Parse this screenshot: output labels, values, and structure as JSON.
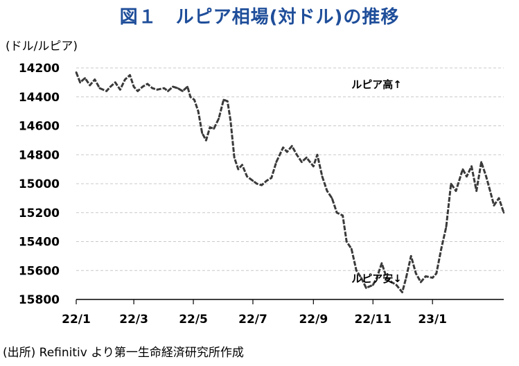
{
  "title": "図１　ルピア相場(対ドル)の推移",
  "unit_label": "(ドル/ルピア)",
  "source_note": "(出所) Refinitiv より第一生命経済研究所作成",
  "colors": {
    "title": "#1f4e9a",
    "series": "#3a3a3a",
    "grid": "#c8c8c8"
  },
  "chart_data": {
    "type": "line",
    "title": "図１　ルピア相場(対ドル)の推移",
    "ylabel": "(ドル/ルピア)",
    "xlabel": "",
    "y_inverted": true,
    "ylim": [
      14200,
      15800
    ],
    "yticks": [
      14200,
      14400,
      14600,
      14800,
      15000,
      15200,
      15400,
      15600,
      15800
    ],
    "ytick_labels": [
      "14200",
      "14400",
      "14600",
      "14800",
      "15000",
      "15200",
      "15400",
      "15600",
      "15800"
    ],
    "xlim": [
      "2022-01-01",
      "2023-03-15"
    ],
    "xticks": [
      "2022-01-01",
      "2022-03-01",
      "2022-05-01",
      "2022-07-01",
      "2022-09-01",
      "2022-11-01",
      "2023-01-01"
    ],
    "xtick_labels": [
      "22/1",
      "22/3",
      "22/5",
      "22/7",
      "22/9",
      "22/11",
      "23/1"
    ],
    "grid": "horizontal-dashed",
    "annotations": [
      {
        "text": "ルピア高↑",
        "date": "2022-10-10",
        "y": 14340
      },
      {
        "text": "ルピア安↓",
        "date": "2022-10-10",
        "y": 15680
      }
    ],
    "series": [
      {
        "x": [
          "2022-01-01",
          "2022-01-05",
          "2022-01-10",
          "2022-01-15",
          "2022-01-20",
          "2022-01-25",
          "2022-02-01",
          "2022-02-05",
          "2022-02-10",
          "2022-02-15",
          "2022-02-20",
          "2022-02-25",
          "2022-03-01",
          "2022-03-05",
          "2022-03-10",
          "2022-03-15",
          "2022-03-20",
          "2022-03-25",
          "2022-04-01",
          "2022-04-05",
          "2022-04-10",
          "2022-04-15",
          "2022-04-20",
          "2022-04-25",
          "2022-04-28",
          "2022-05-02",
          "2022-05-06",
          "2022-05-10",
          "2022-05-14",
          "2022-05-18",
          "2022-05-22",
          "2022-05-27",
          "2022-06-01",
          "2022-06-05",
          "2022-06-08",
          "2022-06-12",
          "2022-06-16",
          "2022-06-20",
          "2022-06-25",
          "2022-07-01",
          "2022-07-05",
          "2022-07-10",
          "2022-07-15",
          "2022-07-20",
          "2022-07-25",
          "2022-08-01",
          "2022-08-05",
          "2022-08-10",
          "2022-08-15",
          "2022-08-20",
          "2022-08-25",
          "2022-09-01",
          "2022-09-05",
          "2022-09-10",
          "2022-09-15",
          "2022-09-20",
          "2022-09-25",
          "2022-10-01",
          "2022-10-05",
          "2022-10-10",
          "2022-10-15",
          "2022-10-20",
          "2022-10-25",
          "2022-11-01",
          "2022-11-05",
          "2022-11-10",
          "2022-11-15",
          "2022-11-20",
          "2022-11-25",
          "2022-12-01",
          "2022-12-05",
          "2022-12-10",
          "2022-12-15",
          "2022-12-20",
          "2022-12-25",
          "2023-01-01",
          "2023-01-05",
          "2023-01-10",
          "2023-01-15",
          "2023-01-20",
          "2023-01-25",
          "2023-02-01",
          "2023-02-05",
          "2023-02-10",
          "2023-02-15",
          "2023-02-20",
          "2023-02-25",
          "2023-03-01",
          "2023-03-05",
          "2023-03-10",
          "2023-03-15"
        ],
        "values": [
          14230,
          14300,
          14270,
          14320,
          14280,
          14340,
          14360,
          14330,
          14300,
          14350,
          14280,
          14250,
          14330,
          14360,
          14330,
          14310,
          14340,
          14350,
          14340,
          14360,
          14330,
          14340,
          14360,
          14330,
          14400,
          14420,
          14500,
          14650,
          14700,
          14610,
          14620,
          14550,
          14420,
          14430,
          14560,
          14820,
          14900,
          14870,
          14950,
          14980,
          15000,
          15010,
          14980,
          14960,
          14850,
          14750,
          14780,
          14740,
          14800,
          14850,
          14820,
          14880,
          14800,
          14950,
          15050,
          15100,
          15200,
          15220,
          15400,
          15450,
          15600,
          15650,
          15720,
          15700,
          15650,
          15550,
          15650,
          15680,
          15700,
          15750,
          15650,
          15500,
          15620,
          15680,
          15640,
          15650,
          15620,
          15450,
          15300,
          15000,
          15050,
          14900,
          14950,
          14880,
          15050,
          14850,
          14950,
          15050,
          15150,
          15100,
          15200
        ]
      }
    ]
  }
}
